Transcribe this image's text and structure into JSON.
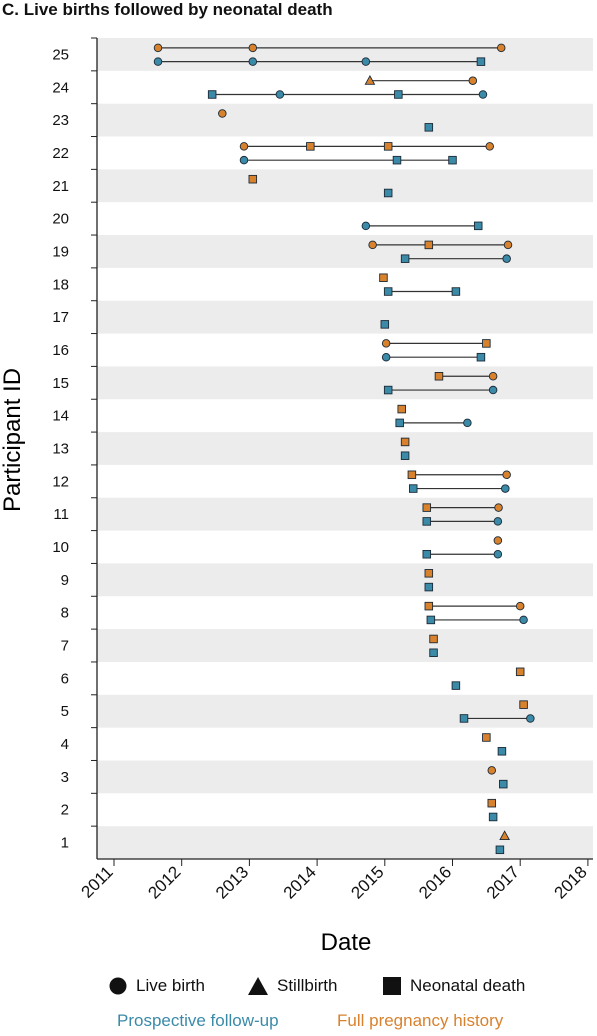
{
  "chart_data": {
    "type": "scatter",
    "title": "C. Live births followed by neonatal death",
    "xlabel": "Date",
    "ylabel": "Participant ID",
    "xlim": [
      2011,
      2018
    ],
    "x_ticks": [
      "2011",
      "2012",
      "2013",
      "2014",
      "2015",
      "2016",
      "2017",
      "2018"
    ],
    "y_ticks": [
      "1",
      "2",
      "3",
      "4",
      "5",
      "6",
      "7",
      "8",
      "9",
      "10",
      "11",
      "12",
      "13",
      "14",
      "15",
      "16",
      "17",
      "18",
      "19",
      "20",
      "21",
      "22",
      "23",
      "24",
      "25"
    ],
    "grid": "alternating horizontal bands",
    "legend": {
      "position": "bottom",
      "outcomes": [
        {
          "shape": "circle",
          "label": "Live birth"
        },
        {
          "shape": "triangle",
          "label": "Stillbirth"
        },
        {
          "shape": "square",
          "label": "Neonatal death"
        }
      ],
      "sources": [
        {
          "key": "prospective",
          "label": "Prospective follow-up",
          "color": "#3a8aa8"
        },
        {
          "key": "full",
          "label": "Full pregnancy history",
          "color": "#d8822e"
        }
      ]
    },
    "colors": {
      "prospective": "#3a8aa8",
      "full": "#d8822e",
      "band": "#ececec",
      "link": "#333333"
    },
    "rows": [
      {
        "id": 1,
        "source": "prospective",
        "points": [
          {
            "x": 2016.7,
            "shape": "square"
          }
        ]
      },
      {
        "id": 1,
        "source": "full",
        "points": [
          {
            "x": 2016.77,
            "shape": "triangle"
          }
        ]
      },
      {
        "id": 2,
        "source": "prospective",
        "points": [
          {
            "x": 2016.6,
            "shape": "square"
          }
        ]
      },
      {
        "id": 2,
        "source": "full",
        "points": [
          {
            "x": 2016.58,
            "shape": "square"
          }
        ]
      },
      {
        "id": 3,
        "source": "prospective",
        "points": [
          {
            "x": 2016.75,
            "shape": "square"
          }
        ]
      },
      {
        "id": 3,
        "source": "full",
        "points": [
          {
            "x": 2016.58,
            "shape": "circle"
          }
        ]
      },
      {
        "id": 4,
        "source": "prospective",
        "points": [
          {
            "x": 2016.73,
            "shape": "square"
          }
        ]
      },
      {
        "id": 4,
        "source": "full",
        "points": [
          {
            "x": 2016.5,
            "shape": "square"
          }
        ]
      },
      {
        "id": 5,
        "source": "prospective",
        "points": [
          {
            "x": 2016.17,
            "shape": "square"
          },
          {
            "x": 2017.15,
            "shape": "circle"
          }
        ]
      },
      {
        "id": 5,
        "source": "full",
        "points": [
          {
            "x": 2017.05,
            "shape": "square"
          }
        ]
      },
      {
        "id": 6,
        "source": "prospective",
        "points": [
          {
            "x": 2016.05,
            "shape": "square"
          }
        ]
      },
      {
        "id": 6,
        "source": "full",
        "points": [
          {
            "x": 2017.0,
            "shape": "square"
          }
        ]
      },
      {
        "id": 7,
        "source": "prospective",
        "points": [
          {
            "x": 2015.72,
            "shape": "square"
          }
        ]
      },
      {
        "id": 7,
        "source": "full",
        "points": [
          {
            "x": 2015.72,
            "shape": "square"
          }
        ]
      },
      {
        "id": 8,
        "source": "prospective",
        "points": [
          {
            "x": 2015.68,
            "shape": "square"
          },
          {
            "x": 2017.05,
            "shape": "circle"
          }
        ]
      },
      {
        "id": 8,
        "source": "full",
        "points": [
          {
            "x": 2015.65,
            "shape": "square"
          },
          {
            "x": 2017.0,
            "shape": "circle"
          }
        ]
      },
      {
        "id": 9,
        "source": "prospective",
        "points": [
          {
            "x": 2015.65,
            "shape": "square"
          }
        ]
      },
      {
        "id": 9,
        "source": "full",
        "points": [
          {
            "x": 2015.65,
            "shape": "square"
          }
        ]
      },
      {
        "id": 10,
        "source": "prospective",
        "points": [
          {
            "x": 2015.62,
            "shape": "square"
          },
          {
            "x": 2016.67,
            "shape": "circle"
          }
        ]
      },
      {
        "id": 10,
        "source": "full",
        "points": [
          {
            "x": 2016.67,
            "shape": "circle"
          }
        ]
      },
      {
        "id": 11,
        "source": "prospective",
        "points": [
          {
            "x": 2015.62,
            "shape": "square"
          },
          {
            "x": 2016.67,
            "shape": "circle"
          }
        ]
      },
      {
        "id": 11,
        "source": "full",
        "points": [
          {
            "x": 2015.62,
            "shape": "square"
          },
          {
            "x": 2016.68,
            "shape": "circle"
          }
        ]
      },
      {
        "id": 12,
        "source": "prospective",
        "points": [
          {
            "x": 2015.42,
            "shape": "square"
          },
          {
            "x": 2016.78,
            "shape": "circle"
          }
        ]
      },
      {
        "id": 12,
        "source": "full",
        "points": [
          {
            "x": 2015.4,
            "shape": "square"
          },
          {
            "x": 2016.8,
            "shape": "circle"
          }
        ]
      },
      {
        "id": 13,
        "source": "prospective",
        "points": [
          {
            "x": 2015.3,
            "shape": "square"
          }
        ]
      },
      {
        "id": 13,
        "source": "full",
        "points": [
          {
            "x": 2015.3,
            "shape": "square"
          }
        ]
      },
      {
        "id": 14,
        "source": "prospective",
        "points": [
          {
            "x": 2015.22,
            "shape": "square"
          },
          {
            "x": 2016.22,
            "shape": "circle"
          }
        ]
      },
      {
        "id": 14,
        "source": "full",
        "points": [
          {
            "x": 2015.25,
            "shape": "square"
          }
        ]
      },
      {
        "id": 15,
        "source": "prospective",
        "points": [
          {
            "x": 2015.05,
            "shape": "square"
          },
          {
            "x": 2016.6,
            "shape": "circle"
          }
        ]
      },
      {
        "id": 15,
        "source": "full",
        "points": [
          {
            "x": 2015.8,
            "shape": "square"
          },
          {
            "x": 2016.6,
            "shape": "circle"
          }
        ]
      },
      {
        "id": 16,
        "source": "prospective",
        "points": [
          {
            "x": 2015.02,
            "shape": "circle"
          },
          {
            "x": 2016.42,
            "shape": "square"
          }
        ]
      },
      {
        "id": 16,
        "source": "full",
        "points": [
          {
            "x": 2015.02,
            "shape": "circle"
          },
          {
            "x": 2016.5,
            "shape": "square"
          }
        ]
      },
      {
        "id": 17,
        "source": "prospective",
        "points": [
          {
            "x": 2015.0,
            "shape": "square"
          }
        ]
      },
      {
        "id": 18,
        "source": "prospective",
        "points": [
          {
            "x": 2015.05,
            "shape": "square"
          },
          {
            "x": 2016.05,
            "shape": "square"
          }
        ]
      },
      {
        "id": 18,
        "source": "full",
        "points": [
          {
            "x": 2014.98,
            "shape": "square"
          }
        ]
      },
      {
        "id": 19,
        "source": "prospective",
        "points": [
          {
            "x": 2015.3,
            "shape": "square"
          },
          {
            "x": 2016.8,
            "shape": "circle"
          }
        ]
      },
      {
        "id": 19,
        "source": "full",
        "points": [
          {
            "x": 2014.82,
            "shape": "circle"
          },
          {
            "x": 2015.65,
            "shape": "square"
          },
          {
            "x": 2016.82,
            "shape": "circle"
          }
        ]
      },
      {
        "id": 20,
        "source": "prospective",
        "points": [
          {
            "x": 2014.72,
            "shape": "circle"
          },
          {
            "x": 2016.38,
            "shape": "square"
          }
        ]
      },
      {
        "id": 21,
        "source": "prospective",
        "points": [
          {
            "x": 2015.05,
            "shape": "square"
          }
        ]
      },
      {
        "id": 21,
        "source": "full",
        "points": [
          {
            "x": 2013.05,
            "shape": "square"
          }
        ]
      },
      {
        "id": 22,
        "source": "prospective",
        "points": [
          {
            "x": 2012.92,
            "shape": "circle"
          },
          {
            "x": 2015.18,
            "shape": "square"
          },
          {
            "x": 2016.0,
            "shape": "square"
          }
        ]
      },
      {
        "id": 22,
        "source": "full",
        "points": [
          {
            "x": 2012.92,
            "shape": "circle"
          },
          {
            "x": 2013.9,
            "shape": "square"
          },
          {
            "x": 2015.05,
            "shape": "square"
          },
          {
            "x": 2016.55,
            "shape": "circle"
          }
        ]
      },
      {
        "id": 23,
        "source": "prospective",
        "points": [
          {
            "x": 2015.65,
            "shape": "square"
          }
        ]
      },
      {
        "id": 23,
        "source": "full",
        "points": [
          {
            "x": 2012.6,
            "shape": "circle"
          }
        ]
      },
      {
        "id": 24,
        "source": "prospective",
        "points": [
          {
            "x": 2012.45,
            "shape": "square"
          },
          {
            "x": 2013.45,
            "shape": "circle"
          },
          {
            "x": 2015.2,
            "shape": "square"
          },
          {
            "x": 2016.45,
            "shape": "circle"
          }
        ]
      },
      {
        "id": 24,
        "source": "full",
        "points": [
          {
            "x": 2014.78,
            "shape": "triangle"
          },
          {
            "x": 2016.3,
            "shape": "circle"
          }
        ]
      },
      {
        "id": 25,
        "source": "prospective",
        "points": [
          {
            "x": 2011.65,
            "shape": "circle"
          },
          {
            "x": 2013.05,
            "shape": "circle"
          },
          {
            "x": 2014.72,
            "shape": "circle"
          },
          {
            "x": 2016.42,
            "shape": "square"
          }
        ]
      },
      {
        "id": 25,
        "source": "full",
        "points": [
          {
            "x": 2011.65,
            "shape": "circle"
          },
          {
            "x": 2013.05,
            "shape": "circle"
          },
          {
            "x": 2016.72,
            "shape": "circle"
          }
        ]
      }
    ]
  }
}
